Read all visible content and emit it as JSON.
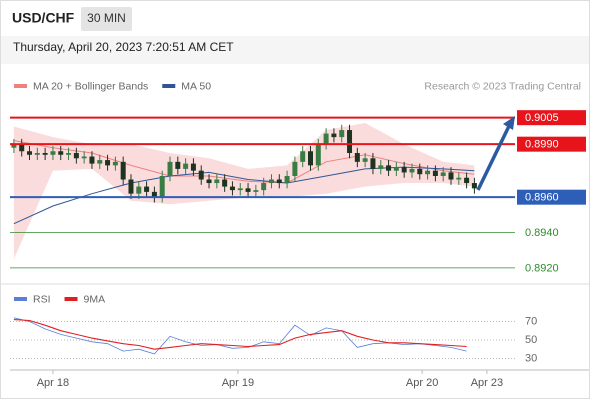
{
  "header": {
    "symbol": "USD/CHF",
    "interval": "30 MIN",
    "timestamp": "Thursday, April 20, 2023 7:20:51 AM CET"
  },
  "chart_data": [
    {
      "type": "candlestick",
      "source": "Research © 2023 Trading Central",
      "up_color": "#3a7d44",
      "down_color": "#1e3320",
      "x": [
        0,
        1,
        2,
        3,
        4,
        5,
        6,
        7,
        8,
        9,
        10,
        11,
        12,
        13,
        14,
        15,
        16,
        17,
        18,
        19,
        20,
        21,
        22,
        23,
        24,
        25,
        26,
        27,
        28,
        29,
        30,
        31,
        32,
        33,
        34,
        35,
        36,
        37,
        38,
        39,
        40,
        41,
        42,
        43,
        44,
        45,
        46,
        47,
        48,
        49,
        50,
        51,
        52,
        53,
        54,
        55,
        56,
        57,
        58,
        59
      ],
      "open": [
        0.8988,
        0.899,
        0.8986,
        0.8984,
        0.8985,
        0.8984,
        0.8986,
        0.8984,
        0.8985,
        0.8982,
        0.8983,
        0.8979,
        0.8981,
        0.8978,
        0.898,
        0.897,
        0.8962,
        0.8966,
        0.8963,
        0.896,
        0.8972,
        0.898,
        0.8976,
        0.8979,
        0.8975,
        0.897,
        0.8968,
        0.897,
        0.8966,
        0.8964,
        0.8965,
        0.8963,
        0.8964,
        0.8968,
        0.897,
        0.8968,
        0.8972,
        0.898,
        0.8986,
        0.8978,
        0.899,
        0.8996,
        0.8994,
        0.8998,
        0.8985,
        0.898,
        0.8982,
        0.8976,
        0.8978,
        0.8975,
        0.8977,
        0.8974,
        0.8976,
        0.8973,
        0.8975,
        0.8972,
        0.8974,
        0.897,
        0.8971,
        0.8968
      ],
      "high": [
        0.8993,
        0.8993,
        0.8989,
        0.8988,
        0.8988,
        0.8989,
        0.8989,
        0.8988,
        0.8988,
        0.8986,
        0.8986,
        0.8984,
        0.8984,
        0.8983,
        0.8983,
        0.8973,
        0.8969,
        0.8969,
        0.8966,
        0.8975,
        0.8983,
        0.8983,
        0.8982,
        0.8982,
        0.8978,
        0.8973,
        0.8973,
        0.8973,
        0.8969,
        0.8968,
        0.8968,
        0.8967,
        0.8971,
        0.8973,
        0.8973,
        0.8975,
        0.8983,
        0.8989,
        0.8989,
        0.8993,
        0.8999,
        0.8999,
        0.9001,
        0.9001,
        0.8988,
        0.8985,
        0.8985,
        0.8981,
        0.8981,
        0.898,
        0.898,
        0.8979,
        0.8979,
        0.8978,
        0.8978,
        0.8977,
        0.8977,
        0.8974,
        0.8974,
        0.8971
      ],
      "low": [
        0.8985,
        0.8983,
        0.8981,
        0.8981,
        0.8981,
        0.8981,
        0.8981,
        0.8981,
        0.8979,
        0.8979,
        0.8976,
        0.8976,
        0.8975,
        0.8975,
        0.8967,
        0.8959,
        0.8959,
        0.896,
        0.8957,
        0.8957,
        0.8969,
        0.8973,
        0.8973,
        0.8972,
        0.8967,
        0.8965,
        0.8965,
        0.8963,
        0.8961,
        0.8961,
        0.896,
        0.896,
        0.8961,
        0.8965,
        0.8965,
        0.8965,
        0.8969,
        0.8977,
        0.8975,
        0.8975,
        0.8987,
        0.8991,
        0.8991,
        0.8982,
        0.8977,
        0.8977,
        0.8973,
        0.8973,
        0.8972,
        0.8972,
        0.8971,
        0.8971,
        0.897,
        0.897,
        0.8969,
        0.8969,
        0.8967,
        0.8967,
        0.8965,
        0.8962
      ],
      "close": [
        0.899,
        0.8986,
        0.8984,
        0.8985,
        0.8984,
        0.8986,
        0.8984,
        0.8985,
        0.8982,
        0.8983,
        0.8979,
        0.8981,
        0.8978,
        0.898,
        0.897,
        0.8962,
        0.8966,
        0.8963,
        0.896,
        0.8972,
        0.898,
        0.8976,
        0.8979,
        0.8975,
        0.897,
        0.8968,
        0.897,
        0.8966,
        0.8964,
        0.8965,
        0.8963,
        0.8964,
        0.8968,
        0.897,
        0.8968,
        0.8972,
        0.898,
        0.8986,
        0.8978,
        0.899,
        0.8996,
        0.8994,
        0.8998,
        0.8985,
        0.898,
        0.8982,
        0.8976,
        0.8978,
        0.8975,
        0.8977,
        0.8974,
        0.8976,
        0.8973,
        0.8975,
        0.8972,
        0.8974,
        0.897,
        0.8971,
        0.8968,
        0.8965
      ],
      "series": [
        {
          "name": "MA 20 + Bollinger Bands",
          "color": "#f08080",
          "x": [
            0,
            5,
            10,
            15,
            20,
            25,
            30,
            35,
            40,
            45,
            50,
            55,
            59
          ],
          "values": [
            0.8992,
            0.8988,
            0.8985,
            0.8978,
            0.8972,
            0.8972,
            0.8969,
            0.8968,
            0.898,
            0.8984,
            0.8979,
            0.8975,
            0.8973
          ],
          "upper": [
            0.9,
            0.8994,
            0.899,
            0.899,
            0.8985,
            0.8982,
            0.8976,
            0.8978,
            0.8998,
            0.9002,
            0.899,
            0.898,
            0.8978
          ],
          "lower": [
            0.8925,
            0.8975,
            0.8976,
            0.8958,
            0.8956,
            0.8958,
            0.896,
            0.896,
            0.8962,
            0.8966,
            0.8968,
            0.8968,
            0.8966
          ]
        },
        {
          "name": "MA 50",
          "color": "#2f5597",
          "x": [
            0,
            5,
            10,
            15,
            20,
            25,
            30,
            35,
            40,
            45,
            50,
            55,
            59
          ],
          "values": [
            0.8945,
            0.8955,
            0.8962,
            0.8968,
            0.8972,
            0.8974,
            0.897,
            0.8968,
            0.8972,
            0.8976,
            0.8977,
            0.8976,
            0.8975
          ]
        }
      ],
      "levels": [
        {
          "value": 0.9005,
          "label": "0.9005",
          "color": "#e8141b",
          "boxed": true
        },
        {
          "value": 0.899,
          "label": "0.8990",
          "color": "#e8141b",
          "boxed": true
        },
        {
          "value": 0.896,
          "label": "0.8960",
          "color": "#2e5fb8",
          "boxed": true
        },
        {
          "value": 0.894,
          "label": "0.8940",
          "color": "#2e8b2e",
          "boxed": false
        },
        {
          "value": 0.892,
          "label": "0.8920",
          "color": "#2e8b2e",
          "boxed": false
        }
      ],
      "xlim": [
        -0.5,
        64.2
      ],
      "ylim": [
        0.8912,
        0.9015
      ]
    },
    {
      "type": "line",
      "x": [
        0,
        2,
        4,
        6,
        8,
        10,
        12,
        14,
        16,
        18,
        20,
        22,
        24,
        26,
        28,
        30,
        32,
        34,
        36,
        38,
        40,
        42,
        44,
        46,
        48,
        50,
        52,
        54,
        56,
        58
      ],
      "series": [
        {
          "name": "RSI",
          "color": "#5b7fd6",
          "values": [
            74,
            70,
            62,
            56,
            52,
            48,
            46,
            38,
            40,
            35,
            54,
            48,
            44,
            45,
            41,
            42,
            48,
            46,
            66,
            55,
            63,
            60,
            42,
            46,
            47,
            45,
            46,
            44,
            42,
            38
          ]
        },
        {
          "name": "9MA",
          "color": "#e02020",
          "values": [
            72,
            71,
            66,
            60,
            56,
            52,
            49,
            46,
            44,
            40,
            42,
            44,
            46,
            45,
            44,
            43,
            44,
            45,
            52,
            56,
            58,
            60,
            54,
            50,
            47,
            47,
            46,
            45,
            44,
            43
          ]
        }
      ],
      "xlim": [
        -0.5,
        64.2
      ],
      "ylim": [
        15.4,
        93.2
      ],
      "yticks": [
        70,
        50,
        30
      ],
      "xticks": [
        {
          "value": 5,
          "label": "Apr 18"
        },
        {
          "value": 28.7,
          "label": "Apr 19"
        },
        {
          "value": 52.3,
          "label": "Apr 20"
        },
        {
          "value": 60.6,
          "label": "Apr 23"
        }
      ]
    }
  ]
}
